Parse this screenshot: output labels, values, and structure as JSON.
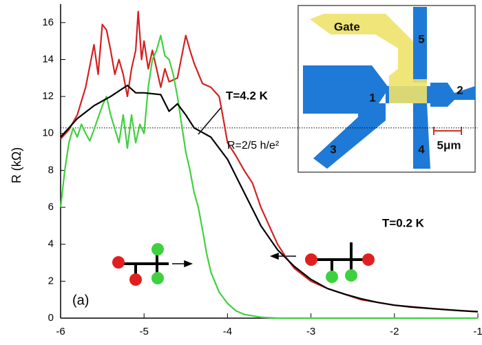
{
  "chart_data": {
    "type": "line",
    "y_label": "R (kΩ)",
    "xlim": [
      -6,
      -1
    ],
    "xticks": [
      -6,
      -5,
      -4,
      -3,
      -2,
      -1
    ],
    "ylim": [
      0,
      17
    ],
    "yticks": [
      0,
      2,
      4,
      6,
      8,
      10,
      12,
      14,
      16
    ],
    "hline": 10.3,
    "series": [
      {
        "color": "#d42020",
        "x": [
          -6,
          -5.9,
          -5.8,
          -5.7,
          -5.6,
          -5.55,
          -5.5,
          -5.45,
          -5.4,
          -5.35,
          -5.3,
          -5.25,
          -5.2,
          -5.15,
          -5.1,
          -5.07,
          -5.03,
          -5,
          -4.95,
          -4.9,
          -4.85,
          -4.8,
          -4.75,
          -4.7,
          -4.6,
          -4.5,
          -4.45,
          -4.4,
          -4.3,
          -4.2,
          -4.1,
          -4.05,
          -4,
          -3.9,
          -3.8,
          -3.7,
          -3.6,
          -3.5,
          -3.4,
          -3.3,
          -3.2,
          -3,
          -2.8,
          -2.6,
          -2.4,
          -2.2,
          -2,
          -1.5,
          -1
        ],
        "values": [
          9.7,
          10.2,
          11,
          12.5,
          14.8,
          13.2,
          15.9,
          15.6,
          14.5,
          13.2,
          14,
          13.2,
          12,
          13.5,
          14.5,
          16.6,
          14,
          15,
          13.5,
          14.5,
          13.5,
          12.5,
          13.5,
          12.8,
          13,
          15.3,
          14.5,
          13.8,
          12.7,
          12.5,
          12,
          10.8,
          9.5,
          8.8,
          8,
          7.3,
          6,
          5,
          4,
          3.3,
          2.7,
          2,
          1.6,
          1.3,
          1,
          0.85,
          0.7,
          0.5,
          0.35
        ]
      },
      {
        "color": "#3ed13e",
        "x": [
          -6,
          -5.95,
          -5.9,
          -5.85,
          -5.8,
          -5.75,
          -5.7,
          -5.65,
          -5.6,
          -5.5,
          -5.45,
          -5.4,
          -5.3,
          -5.25,
          -5.2,
          -5.15,
          -5.1,
          -5.05,
          -5,
          -4.95,
          -4.9,
          -4.85,
          -4.8,
          -4.75,
          -4.7,
          -4.65,
          -4.6,
          -4.55,
          -4.5,
          -4.45,
          -4.4,
          -4.35,
          -4.3,
          -4.25,
          -4.2,
          -4.1,
          -4,
          -3.9,
          -3.8,
          -3.6,
          -3.4,
          -1
        ],
        "values": [
          6,
          8,
          9.5,
          10.3,
          9.8,
          10.5,
          10,
          9.6,
          10.2,
          11.5,
          12,
          11,
          9.5,
          11,
          9.2,
          11,
          9.5,
          10.5,
          10,
          12.5,
          14,
          14.5,
          15.3,
          14.2,
          14,
          13.2,
          12,
          10.5,
          9,
          8,
          6.8,
          6,
          4.8,
          3.5,
          2.5,
          1.4,
          0.8,
          0.4,
          0.2,
          0.05,
          0,
          0
        ]
      },
      {
        "color": "#000000",
        "x": [
          -6,
          -5.8,
          -5.6,
          -5.4,
          -5.2,
          -5.1,
          -5,
          -4.8,
          -4.7,
          -4.6,
          -4.5,
          -4.4,
          -4.2,
          -4,
          -3.8,
          -3.6,
          -3.4,
          -3.2,
          -3,
          -2.8,
          -2.6,
          -2.4,
          -2.2,
          -2,
          -1.8,
          -1.5,
          -1.2,
          -1
        ],
        "values": [
          9.8,
          10.8,
          11.5,
          12,
          12.6,
          12.2,
          12.2,
          12.1,
          11.2,
          11.6,
          11,
          10.3,
          9.8,
          8.6,
          6.8,
          5,
          3.7,
          2.8,
          2.1,
          1.6,
          1.3,
          1.05,
          0.85,
          0.7,
          0.6,
          0.5,
          0.4,
          0.35
        ]
      }
    ],
    "annotations": [
      "T=4.2 K",
      "R=2/5 h/e²",
      "T=0.2 K",
      "(a)"
    ],
    "inset_labels": [
      "Gate",
      "5",
      "1",
      "2",
      "3",
      "4",
      "5μm"
    ]
  }
}
